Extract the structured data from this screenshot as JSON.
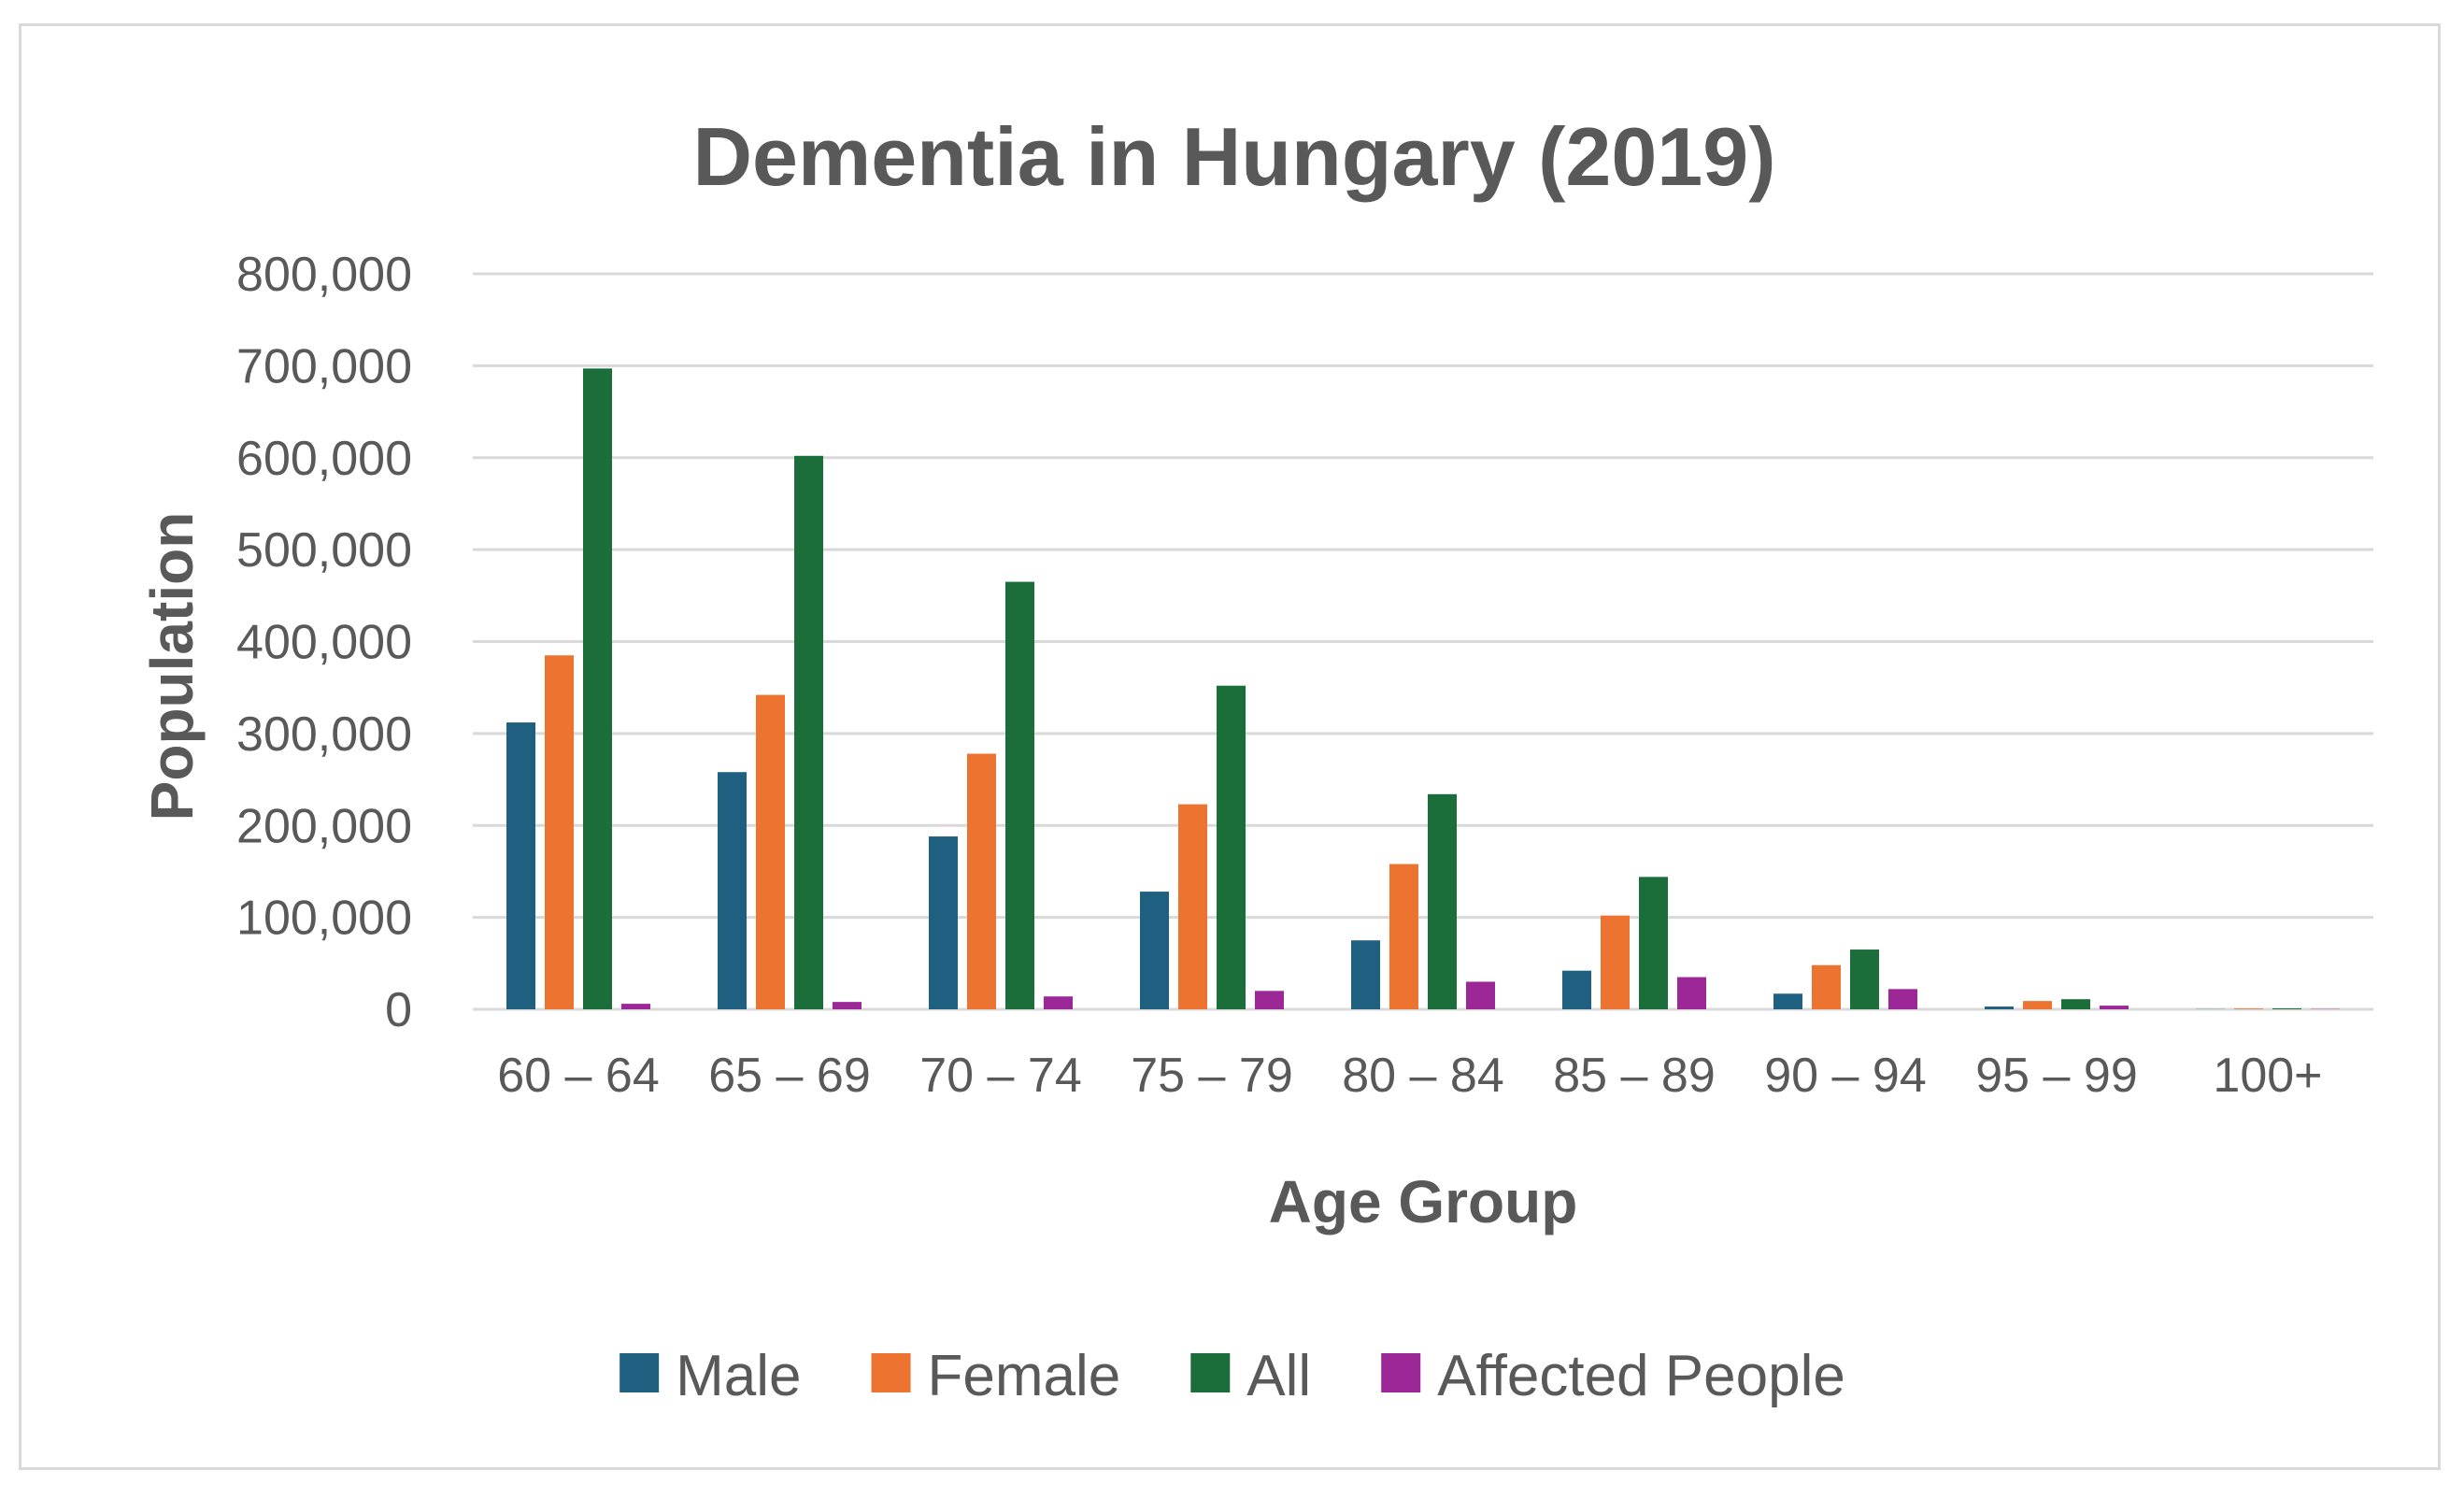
{
  "chart_data": {
    "type": "bar",
    "title": "Dementia in Hungary (2019)",
    "xlabel": "Age Group",
    "ylabel": "Population",
    "ylim": [
      0,
      800000
    ],
    "yticks": [
      0,
      100000,
      200000,
      300000,
      400000,
      500000,
      600000,
      700000,
      800000
    ],
    "ytick_labels": [
      "0",
      "100,000",
      "200,000",
      "300,000",
      "400,000",
      "500,000",
      "600,000",
      "700,000",
      "800,000"
    ],
    "grid": true,
    "legend_position": "bottom",
    "categories": [
      "60 – 64",
      "65 – 69",
      "70 – 74",
      "75 – 79",
      "80 – 84",
      "85 – 89",
      "90 – 94",
      "95 – 99",
      "100+"
    ],
    "series": [
      {
        "name": "Male",
        "color": "#1f5f80",
        "values": [
          312000,
          258000,
          188000,
          128000,
          75000,
          42000,
          17000,
          3000,
          200
        ]
      },
      {
        "name": "Female",
        "color": "#ed7331",
        "values": [
          385000,
          342000,
          278000,
          223000,
          158000,
          102000,
          48000,
          9000,
          800
        ]
      },
      {
        "name": "All",
        "color": "#1b6e3a",
        "values": [
          697000,
          602000,
          465000,
          352000,
          234000,
          144000,
          65000,
          11000,
          1000
        ]
      },
      {
        "name": "Affected People",
        "color": "#9c2796",
        "values": [
          6000,
          8000,
          14000,
          20000,
          30000,
          35000,
          22000,
          4000,
          300
        ]
      }
    ]
  }
}
